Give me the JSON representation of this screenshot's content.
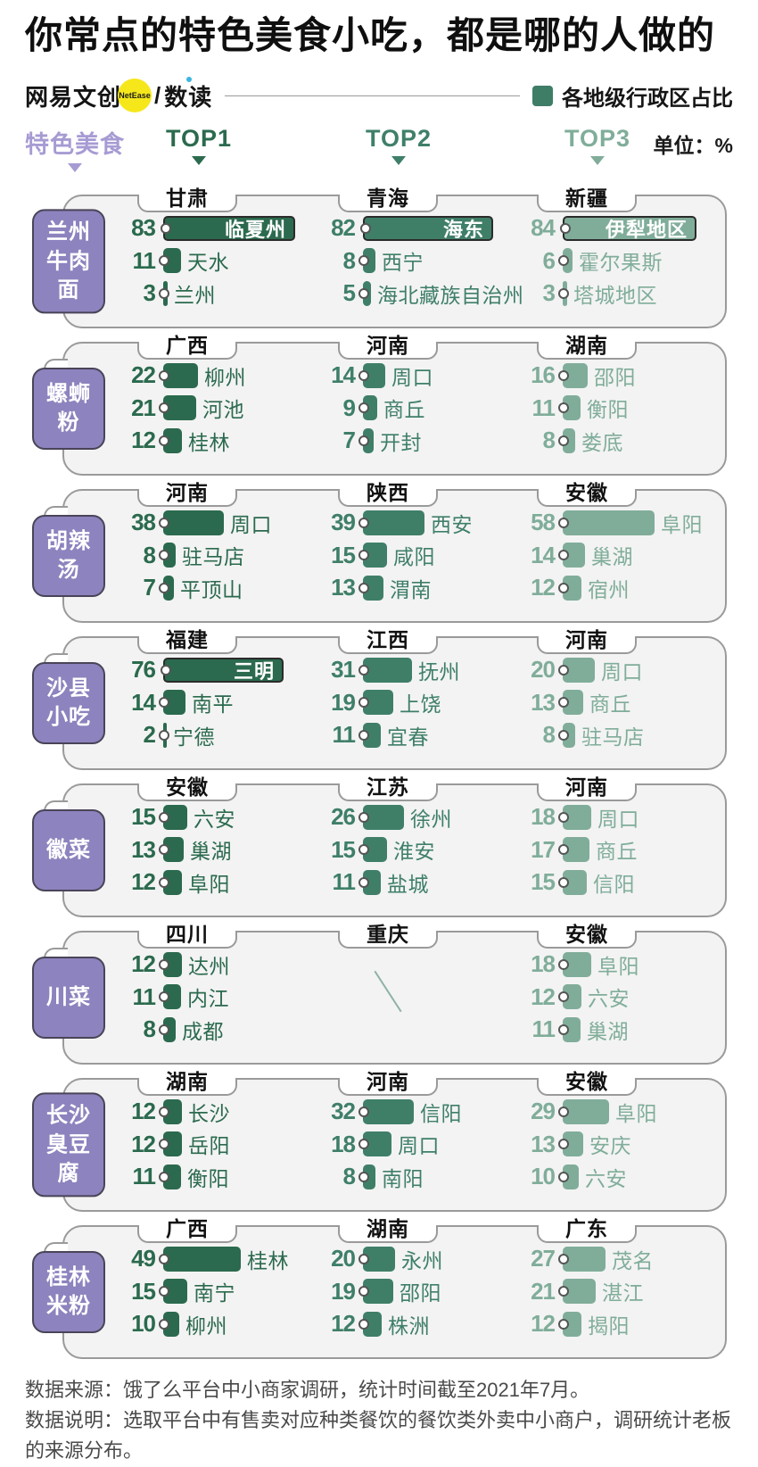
{
  "title": "你常点的特色美食小吃，都是哪的人做的",
  "brand": {
    "name": "网易文创",
    "badge": "NetEase",
    "slash": "/",
    "publication": "数读"
  },
  "legend_label": "各地级行政区占比",
  "header": {
    "food_column_label": "特色美食",
    "top_labels": [
      "TOP1",
      "TOP2",
      "TOP3"
    ],
    "unit_label": "单位：%"
  },
  "colors": {
    "rank1": "#2B6A4E",
    "rank2": "#3F7F68",
    "rank3": "#80AD9A",
    "purple_box": "#8D83BE",
    "purple_text": "#A79BD3",
    "legend_green": "#3E7D66",
    "badge_yellow": "#F6E71B"
  },
  "chart_data": {
    "type": "bar",
    "unit": "%",
    "legend": "各地级行政区占比",
    "groups": [
      {
        "food": "兰州牛肉面",
        "food_lines": [
          "兰州",
          "牛肉面"
        ],
        "columns": [
          {
            "province": "甘肃",
            "bars": [
              {
                "value": 83,
                "city": "临夏州",
                "label_inside": true
              },
              {
                "value": 11,
                "city": "天水"
              },
              {
                "value": 3,
                "city": "兰州"
              }
            ]
          },
          {
            "province": "青海",
            "bars": [
              {
                "value": 82,
                "city": "海东",
                "label_inside": true
              },
              {
                "value": 8,
                "city": "西宁"
              },
              {
                "value": 5,
                "city": "海北藏族自治州"
              }
            ]
          },
          {
            "province": "新疆",
            "bars": [
              {
                "value": 84,
                "city": "伊犁地区",
                "label_inside": true
              },
              {
                "value": 6,
                "city": "霍尔果斯"
              },
              {
                "value": 3,
                "city": "塔城地区"
              }
            ]
          }
        ]
      },
      {
        "food": "螺蛳粉",
        "food_lines": [
          "螺蛳粉"
        ],
        "columns": [
          {
            "province": "广西",
            "bars": [
              {
                "value": 22,
                "city": "柳州"
              },
              {
                "value": 21,
                "city": "河池"
              },
              {
                "value": 12,
                "city": "桂林"
              }
            ]
          },
          {
            "province": "河南",
            "bars": [
              {
                "value": 14,
                "city": "周口"
              },
              {
                "value": 9,
                "city": "商丘"
              },
              {
                "value": 7,
                "city": "开封"
              }
            ]
          },
          {
            "province": "湖南",
            "bars": [
              {
                "value": 16,
                "city": "邵阳"
              },
              {
                "value": 11,
                "city": "衡阳"
              },
              {
                "value": 8,
                "city": "娄底"
              }
            ]
          }
        ]
      },
      {
        "food": "胡辣汤",
        "food_lines": [
          "胡辣汤"
        ],
        "columns": [
          {
            "province": "河南",
            "bars": [
              {
                "value": 38,
                "city": "周口"
              },
              {
                "value": 8,
                "city": "驻马店"
              },
              {
                "value": 7,
                "city": "平顶山"
              }
            ]
          },
          {
            "province": "陕西",
            "bars": [
              {
                "value": 39,
                "city": "西安"
              },
              {
                "value": 15,
                "city": "咸阳"
              },
              {
                "value": 13,
                "city": "渭南"
              }
            ]
          },
          {
            "province": "安徽",
            "bars": [
              {
                "value": 58,
                "city": "阜阳"
              },
              {
                "value": 14,
                "city": "巢湖"
              },
              {
                "value": 12,
                "city": "宿州"
              }
            ]
          }
        ]
      },
      {
        "food": "沙县小吃",
        "food_lines": [
          "沙县",
          "小吃"
        ],
        "columns": [
          {
            "province": "福建",
            "bars": [
              {
                "value": 76,
                "city": "三明",
                "label_inside": true
              },
              {
                "value": 14,
                "city": "南平"
              },
              {
                "value": 2,
                "city": "宁德"
              }
            ]
          },
          {
            "province": "江西",
            "bars": [
              {
                "value": 31,
                "city": "抚州"
              },
              {
                "value": 19,
                "city": "上饶"
              },
              {
                "value": 11,
                "city": "宜春"
              }
            ]
          },
          {
            "province": "河南",
            "bars": [
              {
                "value": 20,
                "city": "周口"
              },
              {
                "value": 13,
                "city": "商丘"
              },
              {
                "value": 8,
                "city": "驻马店"
              }
            ]
          }
        ]
      },
      {
        "food": "徽菜",
        "food_lines": [
          "徽菜"
        ],
        "columns": [
          {
            "province": "安徽",
            "bars": [
              {
                "value": 15,
                "city": "六安"
              },
              {
                "value": 13,
                "city": "巢湖"
              },
              {
                "value": 12,
                "city": "阜阳"
              }
            ]
          },
          {
            "province": "江苏",
            "bars": [
              {
                "value": 26,
                "city": "徐州"
              },
              {
                "value": 15,
                "city": "淮安"
              },
              {
                "value": 11,
                "city": "盐城"
              }
            ]
          },
          {
            "province": "河南",
            "bars": [
              {
                "value": 18,
                "city": "周口"
              },
              {
                "value": 17,
                "city": "商丘"
              },
              {
                "value": 15,
                "city": "信阳"
              }
            ]
          }
        ]
      },
      {
        "food": "川菜",
        "food_lines": [
          "川菜"
        ],
        "columns": [
          {
            "province": "四川",
            "bars": [
              {
                "value": 12,
                "city": "达州"
              },
              {
                "value": 11,
                "city": "内江"
              },
              {
                "value": 8,
                "city": "成都"
              }
            ]
          },
          {
            "province": "重庆",
            "empty": true,
            "bars": []
          },
          {
            "province": "安徽",
            "bars": [
              {
                "value": 18,
                "city": "阜阳"
              },
              {
                "value": 12,
                "city": "六安"
              },
              {
                "value": 11,
                "city": "巢湖"
              }
            ]
          }
        ]
      },
      {
        "food": "长沙臭豆腐",
        "food_lines": [
          "长沙",
          "臭豆腐"
        ],
        "columns": [
          {
            "province": "湖南",
            "bars": [
              {
                "value": 12,
                "city": "长沙"
              },
              {
                "value": 12,
                "city": "岳阳"
              },
              {
                "value": 11,
                "city": "衡阳"
              }
            ]
          },
          {
            "province": "河南",
            "bars": [
              {
                "value": 32,
                "city": "信阳"
              },
              {
                "value": 18,
                "city": "周口"
              },
              {
                "value": 8,
                "city": "南阳"
              }
            ]
          },
          {
            "province": "安徽",
            "bars": [
              {
                "value": 29,
                "city": "阜阳"
              },
              {
                "value": 13,
                "city": "安庆"
              },
              {
                "value": 10,
                "city": "六安"
              }
            ]
          }
        ]
      },
      {
        "food": "桂林米粉",
        "food_lines": [
          "桂林",
          "米粉"
        ],
        "columns": [
          {
            "province": "广西",
            "bars": [
              {
                "value": 49,
                "city": "桂林"
              },
              {
                "value": 15,
                "city": "南宁"
              },
              {
                "value": 10,
                "city": "柳州"
              }
            ]
          },
          {
            "province": "湖南",
            "bars": [
              {
                "value": 20,
                "city": "永州"
              },
              {
                "value": 19,
                "city": "邵阳"
              },
              {
                "value": 12,
                "city": "株洲"
              }
            ]
          },
          {
            "province": "广东",
            "bars": [
              {
                "value": 27,
                "city": "茂名"
              },
              {
                "value": 21,
                "city": "湛江"
              },
              {
                "value": 12,
                "city": "揭阳"
              }
            ]
          }
        ]
      }
    ]
  },
  "footer": {
    "source_line": "数据来源：饿了么平台中小商家调研，统计时间截至2021年7月。",
    "note_line": "数据说明：选取平台中有售卖对应种类餐饮的餐饮类外卖中小商户，调研统计老板的来源分布。"
  }
}
